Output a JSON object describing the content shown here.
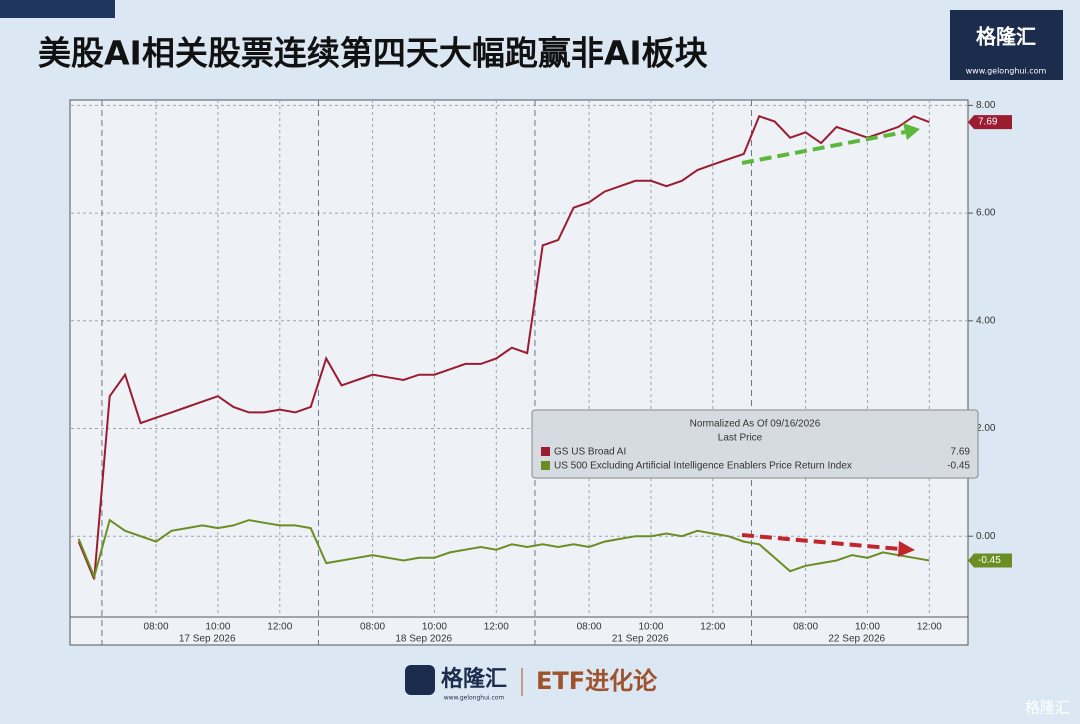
{
  "header": {
    "title": "美股AI相关股票连续第四天大幅跑赢非AI板块",
    "logo": "格隆汇",
    "site": "www.gelonghui.com"
  },
  "footer": {
    "logo": "格隆汇",
    "site": "www.gelonghui.com",
    "column": "ETF进化论",
    "watermark": "格隆汇"
  },
  "chart_data": {
    "type": "line",
    "days": [
      {
        "date": null,
        "times": [
          null,
          null
        ]
      },
      {
        "date": "17 Sep 2026",
        "times": [
          null,
          null,
          null,
          "08:00",
          null,
          null,
          null,
          "10:00",
          null,
          null,
          null,
          "12:00",
          null,
          null
        ]
      },
      {
        "date": "18 Sep 2026",
        "times": [
          null,
          null,
          null,
          "08:00",
          null,
          null,
          null,
          "10:00",
          null,
          null,
          null,
          "12:00",
          null,
          null
        ]
      },
      {
        "date": "21 Sep 2026",
        "times": [
          null,
          null,
          null,
          "08:00",
          null,
          null,
          null,
          "10:00",
          null,
          null,
          null,
          "12:00",
          null,
          null
        ]
      },
      {
        "date": "22 Sep 2026",
        "times": [
          null,
          null,
          null,
          "08:00",
          null,
          null,
          null,
          "10:00",
          null,
          null,
          null,
          "12:00",
          null,
          null
        ]
      }
    ],
    "legend_title": "Normalized As Of 09/16/2026",
    "legend_subtitle": "Last Price",
    "series": [
      {
        "name": "GS US Broad AI",
        "color": "#9b1b30",
        "last_value": 7.69,
        "values": [
          -0.1,
          -0.8,
          2.6,
          3.0,
          2.1,
          2.2,
          2.3,
          2.4,
          2.5,
          2.6,
          2.4,
          2.3,
          2.3,
          2.35,
          2.3,
          2.4,
          3.3,
          2.8,
          2.9,
          3.0,
          2.95,
          2.9,
          3.0,
          3.0,
          3.1,
          3.2,
          3.2,
          3.3,
          3.5,
          3.4,
          5.4,
          5.5,
          6.1,
          6.2,
          6.4,
          6.5,
          6.6,
          6.6,
          6.5,
          6.6,
          6.8,
          6.9,
          7.0,
          7.1,
          7.8,
          7.7,
          7.4,
          7.5,
          7.3,
          7.6,
          7.5,
          7.4,
          7.5,
          7.6,
          7.8,
          7.69,
          null,
          null
        ]
      },
      {
        "name": "US 500 Excluding Artificial Intelligence Enablers Price Return Index",
        "color": "#6b8e23",
        "last_value": -0.45,
        "values": [
          -0.05,
          -0.75,
          0.3,
          0.1,
          0.0,
          -0.1,
          0.1,
          0.15,
          0.2,
          0.15,
          0.2,
          0.3,
          0.25,
          0.2,
          0.2,
          0.15,
          -0.5,
          -0.45,
          -0.4,
          -0.35,
          -0.4,
          -0.45,
          -0.4,
          -0.4,
          -0.3,
          -0.25,
          -0.2,
          -0.25,
          -0.15,
          -0.2,
          -0.15,
          -0.2,
          -0.15,
          -0.2,
          -0.1,
          -0.05,
          0.0,
          0.0,
          0.05,
          0.0,
          0.1,
          0.05,
          0.0,
          -0.1,
          -0.15,
          -0.4,
          -0.65,
          -0.55,
          -0.5,
          -0.45,
          -0.35,
          -0.4,
          -0.3,
          -0.35,
          -0.4,
          -0.45,
          null,
          null
        ]
      }
    ],
    "ylim": [
      -1.5,
      8.1
    ],
    "yticks": [
      {
        "value": 0,
        "label": "0.00"
      },
      {
        "value": 2,
        "label": "2.00"
      },
      {
        "value": 4,
        "label": "4.00"
      },
      {
        "value": 6,
        "label": "6.00"
      },
      {
        "value": 8,
        "label": "8.00"
      }
    ],
    "grid": true
  }
}
